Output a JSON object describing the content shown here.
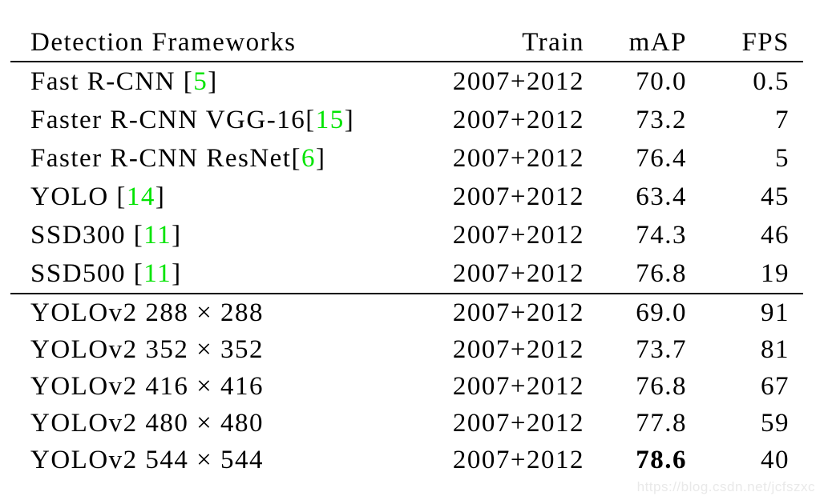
{
  "page": {
    "background": "#ffffff",
    "text_color": "#000000"
  },
  "table": {
    "citation_color": "#00e400",
    "columns": [
      "Detection Frameworks",
      "Train",
      "mAP",
      "FPS"
    ],
    "groups": [
      {
        "name": "baseline-detectors",
        "rows": [
          {
            "framework": "Fast R-CNN",
            "cite": "5",
            "space_before_cite": true,
            "train": "2007+2012",
            "map": "70.0",
            "fps": "0.5"
          },
          {
            "framework": "Faster R-CNN VGG-16",
            "cite": "15",
            "space_before_cite": false,
            "train": "2007+2012",
            "map": "73.2",
            "fps": "7"
          },
          {
            "framework": "Faster R-CNN ResNet",
            "cite": "6",
            "space_before_cite": false,
            "train": "2007+2012",
            "map": "76.4",
            "fps": "5"
          },
          {
            "framework": "YOLO",
            "cite": "14",
            "space_before_cite": true,
            "train": "2007+2012",
            "map": "63.4",
            "fps": "45"
          },
          {
            "framework": "SSD300",
            "cite": "11",
            "space_before_cite": true,
            "train": "2007+2012",
            "map": "74.3",
            "fps": "46"
          },
          {
            "framework": "SSD500",
            "cite": "11",
            "space_before_cite": true,
            "train": "2007+2012",
            "map": "76.8",
            "fps": "19"
          }
        ]
      },
      {
        "name": "yolov2-resolutions",
        "rows": [
          {
            "framework": "YOLOv2 288 × 288",
            "train": "2007+2012",
            "map": "69.0",
            "fps": "91"
          },
          {
            "framework": "YOLOv2 352 × 352",
            "train": "2007+2012",
            "map": "73.7",
            "fps": "81"
          },
          {
            "framework": "YOLOv2 416 × 416",
            "train": "2007+2012",
            "map": "76.8",
            "fps": "67"
          },
          {
            "framework": "YOLOv2 480 × 480",
            "train": "2007+2012",
            "map": "77.8",
            "fps": "59"
          },
          {
            "framework": "YOLOv2 544 × 544",
            "train": "2007+2012",
            "map": "78.6",
            "map_bold": true,
            "fps": "40"
          }
        ]
      }
    ]
  },
  "watermark": {
    "text": "https://blog.csdn.net/jcfszxc",
    "color": "#e9e9e9"
  }
}
